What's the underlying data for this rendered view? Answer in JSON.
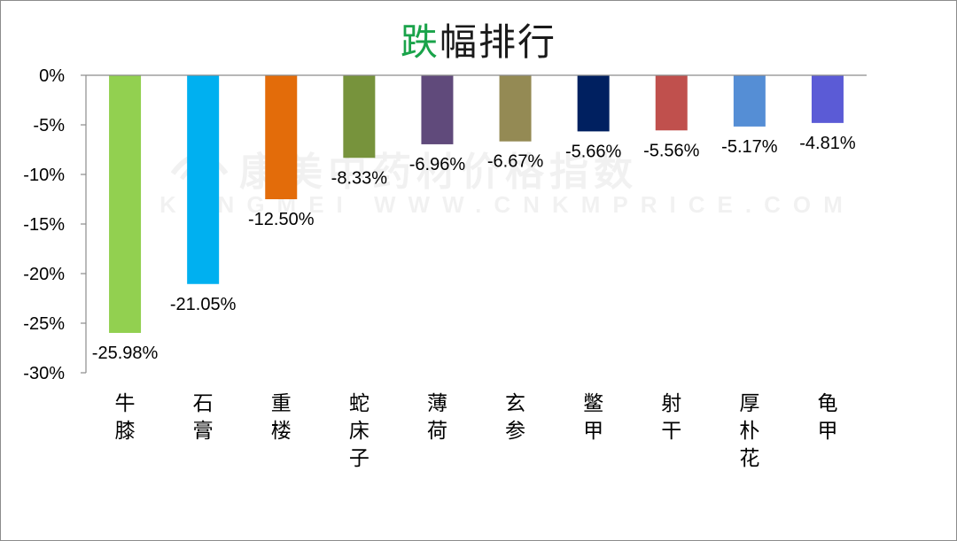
{
  "title": {
    "accent": "跌",
    "rest": "幅排行"
  },
  "watermark": {
    "brand": "康美中药材价格指数",
    "url": "KANGMEI WWW.CNKMPRICE.COM"
  },
  "chart_data": {
    "type": "bar",
    "title": "跌幅排行",
    "xlabel": "",
    "ylabel": "",
    "ylim": [
      -30,
      0
    ],
    "yticks": [
      0,
      -5,
      -10,
      -15,
      -20,
      -25,
      -30
    ],
    "ytick_labels": [
      "0%",
      "-5%",
      "-10%",
      "-15%",
      "-20%",
      "-25%",
      "-30%"
    ],
    "grid": false,
    "categories": [
      "牛膝",
      "石膏",
      "重楼",
      "蛇床子",
      "薄荷",
      "玄参",
      "鳖甲",
      "射干",
      "厚朴花",
      "龟甲"
    ],
    "values": [
      -25.98,
      -21.05,
      -12.5,
      -8.33,
      -6.96,
      -6.67,
      -5.66,
      -5.56,
      -5.17,
      -4.81
    ],
    "data_labels": [
      "-25.98%",
      "-21.05%",
      "-12.50%",
      "-8.33%",
      "-6.96%",
      "-6.67%",
      "-5.66%",
      "-5.56%",
      "-5.17%",
      "-4.81%"
    ],
    "colors": [
      "#92d050",
      "#00b0f0",
      "#e36c0a",
      "#77933c",
      "#604a7b",
      "#948a54",
      "#002060",
      "#c0504d",
      "#558ed5",
      "#5b5bd6"
    ]
  }
}
